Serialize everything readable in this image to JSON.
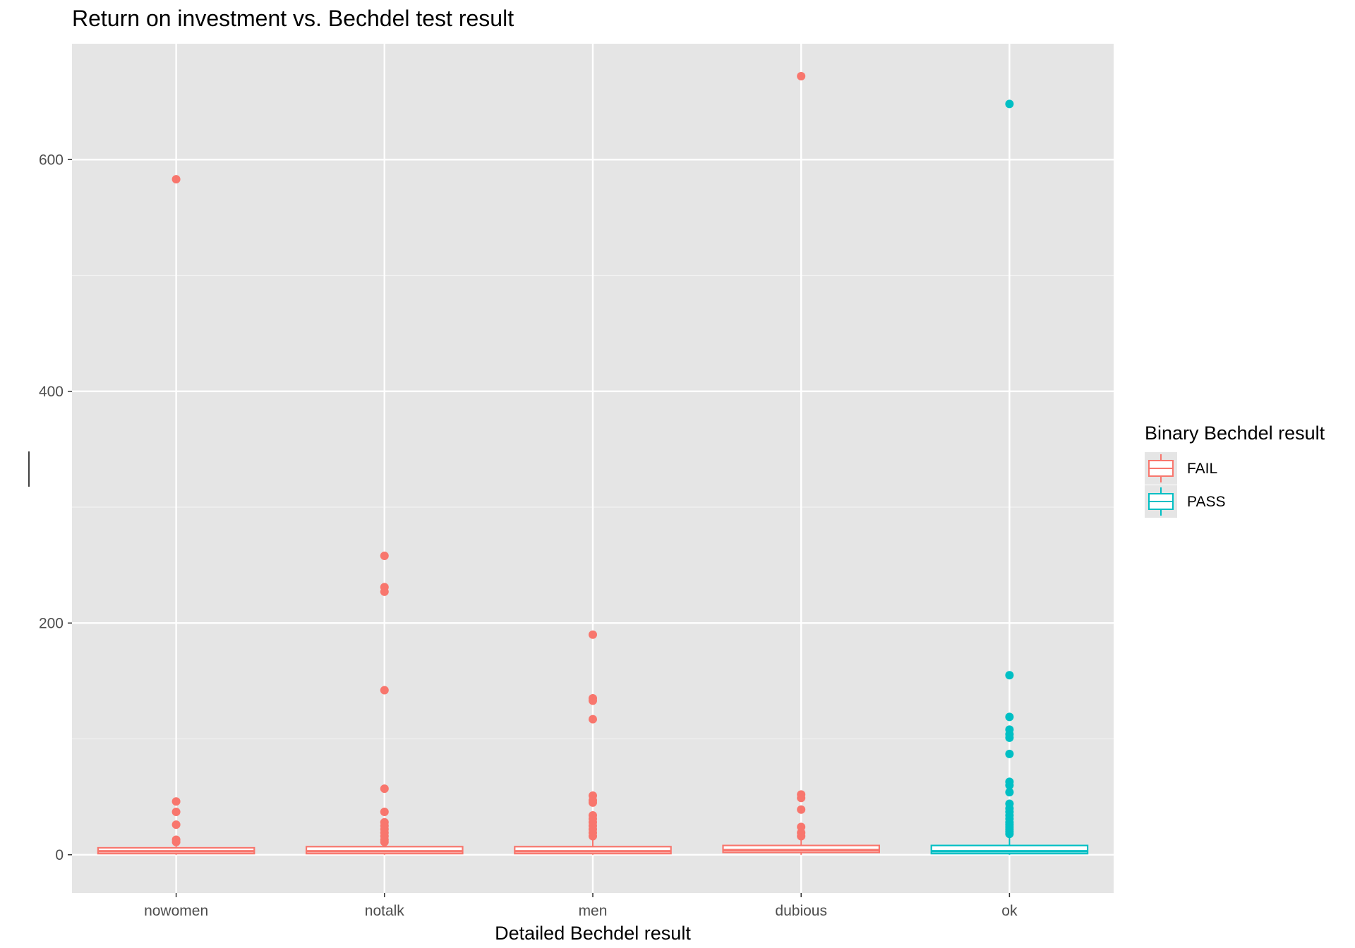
{
  "chart_data": {
    "type": "boxplot",
    "title": "Return on investment vs. Bechdel test result",
    "xlabel": "Detailed Bechdel result",
    "ylabel": "",
    "categories": [
      "nowomen",
      "notalk",
      "men",
      "dubious",
      "ok"
    ],
    "ylim": [
      -33,
      700
    ],
    "yticks": [
      0,
      200,
      400,
      600
    ],
    "grid": true,
    "legend": {
      "title": "Binary Bechdel result",
      "position": "right",
      "entries": [
        {
          "label": "FAIL",
          "color": "#F8766D"
        },
        {
          "label": "PASS",
          "color": "#00BFC4"
        }
      ]
    },
    "boxes": [
      {
        "category": "nowomen",
        "group": "FAIL",
        "min": 0,
        "q1": 1,
        "median": 3,
        "q3": 6,
        "max": 8,
        "outliers": [
          583,
          46,
          37,
          26,
          13,
          11
        ]
      },
      {
        "category": "notalk",
        "group": "FAIL",
        "min": 0,
        "q1": 1,
        "median": 3,
        "q3": 7,
        "max": 10,
        "outliers": [
          258,
          231,
          227,
          142,
          57,
          37,
          28,
          25,
          22,
          19,
          16,
          13,
          11
        ]
      },
      {
        "category": "men",
        "group": "FAIL",
        "min": 0,
        "q1": 1,
        "median": 3,
        "q3": 7,
        "max": 14,
        "outliers": [
          190,
          135,
          133,
          117,
          51,
          47,
          45,
          34,
          31,
          28,
          25,
          22,
          19,
          16
        ]
      },
      {
        "category": "dubious",
        "group": "FAIL",
        "min": 0,
        "q1": 2,
        "median": 4,
        "q3": 8,
        "max": 14,
        "outliers": [
          672,
          52,
          49,
          39,
          24,
          19,
          16
        ]
      },
      {
        "category": "ok",
        "group": "PASS",
        "min": 0,
        "q1": 1,
        "median": 3,
        "q3": 8,
        "max": 17,
        "outliers": [
          648,
          155,
          119,
          108,
          104,
          101,
          87,
          63,
          60,
          54,
          44,
          40,
          37,
          34,
          31,
          28,
          26,
          24,
          22,
          20,
          18
        ]
      }
    ]
  }
}
